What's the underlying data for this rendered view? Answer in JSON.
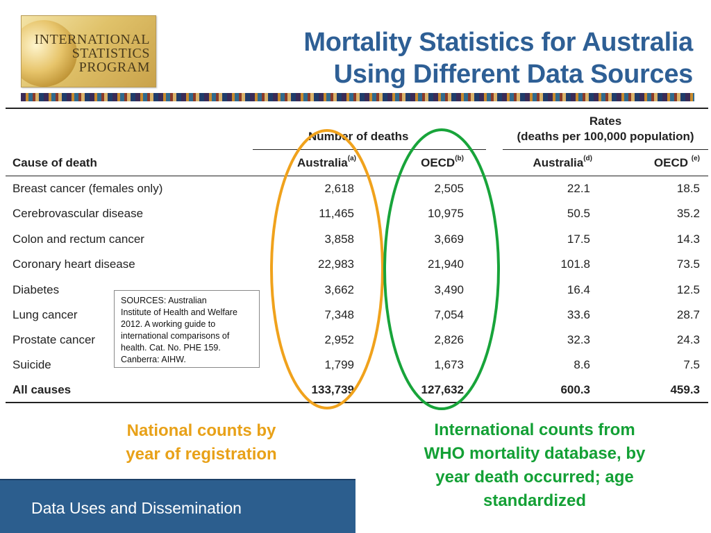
{
  "logo": {
    "line1": "INTERNATIONAL",
    "line2": "STATISTICS",
    "line3": "PROGRAM"
  },
  "title": {
    "line1": "Mortality Statistics for Australia",
    "line2": "Using Different Data Sources"
  },
  "table": {
    "group_deaths": "Number of deaths",
    "group_rates_line1": "Rates",
    "group_rates_line2": "(deaths per 100,000 population)",
    "col_cause": "Cause of death",
    "col_deaths_aus": "Australia",
    "col_deaths_aus_sup": "(a)",
    "col_deaths_oecd": "OECD",
    "col_deaths_oecd_sup": "(b)",
    "col_rates_aus": "Australia",
    "col_rates_aus_sup": "(d)",
    "col_rates_oecd": "OECD ",
    "col_rates_oecd_sup": "(e)",
    "rows": [
      {
        "cause": "Breast cancer (females only)",
        "d_aus": "2,618",
        "d_oecd": "2,505",
        "r_aus": "22.1",
        "r_oecd": "18.5"
      },
      {
        "cause": "Cerebrovascular disease",
        "d_aus": "11,465",
        "d_oecd": "10,975",
        "r_aus": "50.5",
        "r_oecd": "35.2"
      },
      {
        "cause": "Colon and rectum cancer",
        "d_aus": "3,858",
        "d_oecd": "3,669",
        "r_aus": "17.5",
        "r_oecd": "14.3"
      },
      {
        "cause": "Coronary heart disease",
        "d_aus": "22,983",
        "d_oecd": "21,940",
        "r_aus": "101.8",
        "r_oecd": "73.5"
      },
      {
        "cause": "Diabetes",
        "d_aus": "3,662",
        "d_oecd": "3,490",
        "r_aus": "16.4",
        "r_oecd": "12.5"
      },
      {
        "cause": "Lung cancer",
        "d_aus": "7,348",
        "d_oecd": "7,054",
        "r_aus": "33.6",
        "r_oecd": "28.7"
      },
      {
        "cause": "Prostate cancer",
        "d_aus": "2,952",
        "d_oecd": "2,826",
        "r_aus": "32.3",
        "r_oecd": "24.3"
      },
      {
        "cause": "Suicide",
        "d_aus": "1,799",
        "d_oecd": "1,673",
        "r_aus": "8.6",
        "r_oecd": "7.5"
      },
      {
        "cause": "All causes",
        "d_aus": "133,739",
        "d_oecd": "127,632",
        "r_aus": "600.3",
        "r_oecd": "459.3"
      }
    ]
  },
  "sources": {
    "line1": "SOURCES: Australian",
    "line2": "Institute of Health and Welfare",
    "line3": "2012. A working guide to",
    "line4": "international comparisons of",
    "line5": "health. Cat. No. PHE 159.",
    "line6": "Canberra: AIHW."
  },
  "captions": {
    "orange_line1": "National counts by",
    "orange_line2": "year of registration",
    "green_line1": "International counts from",
    "green_line2": "WHO mortality database, by",
    "green_line3": "year death occurred; age",
    "green_line4": "standardized"
  },
  "colors": {
    "title": "#2e5f95",
    "orange": "#e8a118",
    "green": "#13a035",
    "footer": "#2c5e8e"
  },
  "footer": {
    "label": "Data Uses and Dissemination"
  }
}
